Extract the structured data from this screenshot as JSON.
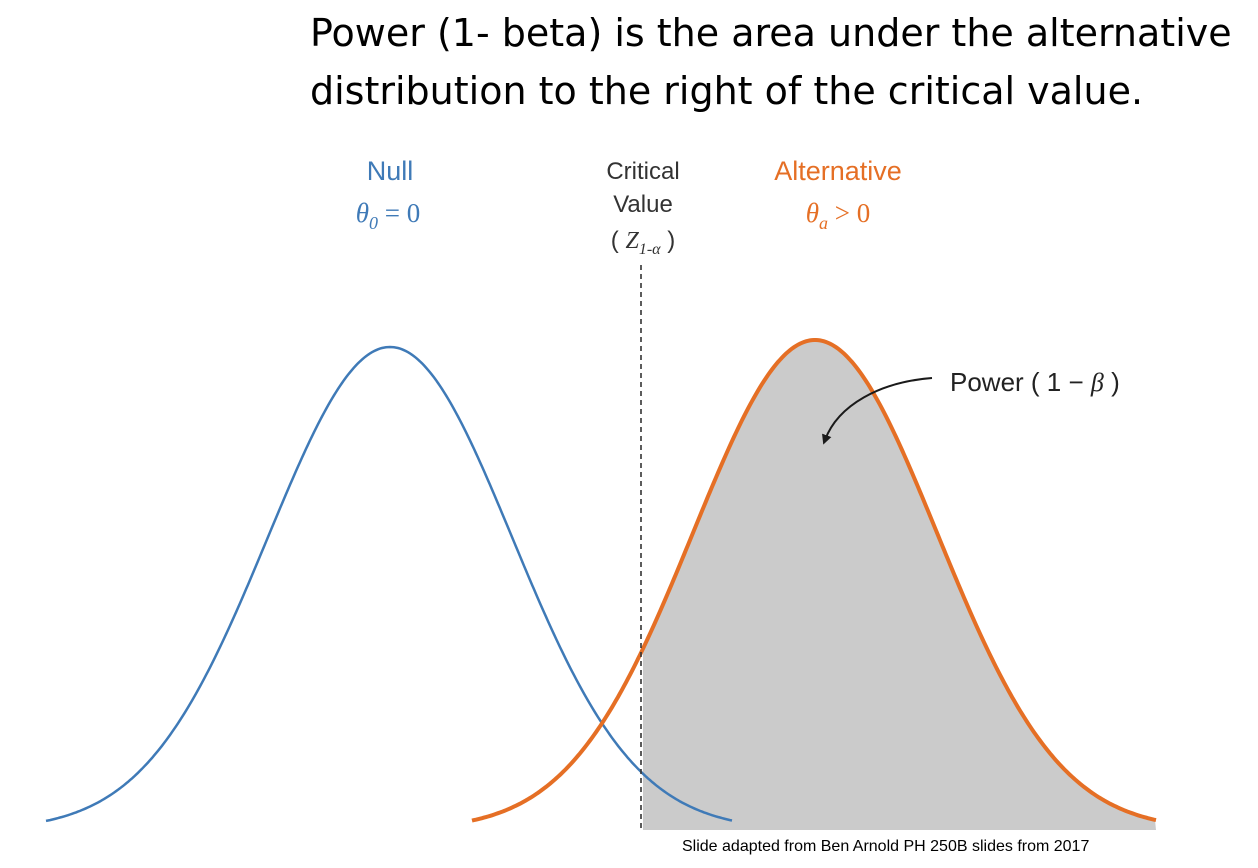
{
  "title": {
    "line1": "Power (1- beta) is the area under the alternative",
    "line2": "distribution to the right of the critical value."
  },
  "null_label": {
    "name": "Null",
    "symbol": "θ",
    "subscript": "0",
    "relation": " = 0"
  },
  "critical_label": {
    "line1": "Critical",
    "line2": "Value",
    "open": "( ",
    "symbol": "Z",
    "subscript": "1-α",
    "close": " )"
  },
  "alternative_label": {
    "name": "Alternative",
    "symbol": "θ",
    "subscript": "a",
    "relation": " > 0"
  },
  "power_label": {
    "text": "Power ( 1 − ",
    "symbol": "β",
    "close": " )"
  },
  "credit": "Slide adapted from Ben Arnold  PH 250B slides from 2017",
  "colors": {
    "null": "#3f7ab7",
    "alternative": "#e56f25",
    "shade": "#cbcbcb",
    "critical_line": "#333333",
    "text": "#000000",
    "label_gray": "#333333"
  }
}
